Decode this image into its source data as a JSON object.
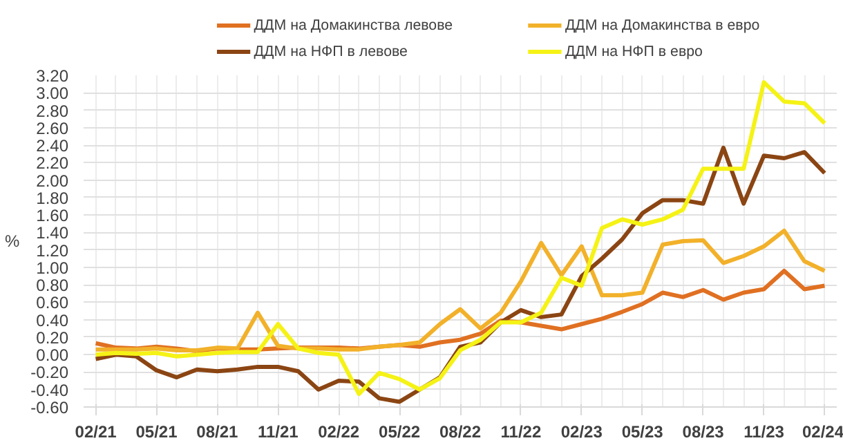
{
  "chart_data": {
    "type": "line",
    "ylabel": "%",
    "categories": [
      "02/21",
      null,
      null,
      "05/21",
      null,
      null,
      "08/21",
      null,
      null,
      "11/21",
      null,
      null,
      "02/22",
      null,
      null,
      "05/22",
      null,
      null,
      "08/22",
      null,
      null,
      "11/22",
      null,
      null,
      "02/23",
      null,
      null,
      "05/23",
      null,
      null,
      "08/23",
      null,
      null,
      "11/23",
      null,
      null,
      "02/24"
    ],
    "series": [
      {
        "name": "ДДМ на Домакинства левове",
        "color": "#e07022",
        "values": [
          0.13,
          0.08,
          0.07,
          0.09,
          0.07,
          0.04,
          0.07,
          0.06,
          0.06,
          0.07,
          0.08,
          0.08,
          0.08,
          0.07,
          0.09,
          0.11,
          0.09,
          0.14,
          0.17,
          0.24,
          0.39,
          0.37,
          0.33,
          0.29,
          0.35,
          0.41,
          0.49,
          0.58,
          0.71,
          0.66,
          0.74,
          0.63,
          0.71,
          0.75,
          0.96,
          0.75,
          0.79
        ]
      },
      {
        "name": "ДДМ на Домакинства в евро",
        "color": "#f2b12a",
        "values": [
          0.06,
          0.06,
          0.06,
          0.07,
          0.05,
          0.05,
          0.08,
          0.07,
          0.48,
          0.1,
          0.07,
          0.07,
          0.06,
          0.06,
          0.09,
          0.11,
          0.14,
          0.35,
          0.52,
          0.3,
          0.48,
          0.84,
          1.28,
          0.91,
          1.24,
          0.68,
          0.68,
          0.71,
          1.26,
          1.3,
          1.31,
          1.05,
          1.13,
          1.24,
          1.42,
          1.07,
          0.96
        ]
      },
      {
        "name": "ДДМ на НФП  в левове",
        "color": "#8b4513",
        "values": [
          -0.05,
          0.0,
          -0.02,
          -0.18,
          -0.26,
          -0.17,
          -0.19,
          -0.17,
          -0.14,
          -0.14,
          -0.19,
          -0.4,
          -0.3,
          -0.31,
          -0.5,
          -0.54,
          -0.4,
          -0.26,
          0.09,
          0.14,
          0.37,
          0.51,
          0.43,
          0.46,
          0.9,
          1.1,
          1.32,
          1.62,
          1.77,
          1.77,
          1.73,
          2.37,
          1.73,
          2.28,
          2.25,
          2.32,
          2.08
        ]
      },
      {
        "name": "ДДМ на НФП  в евро",
        "color": "#f5f216",
        "values": [
          0.0,
          0.02,
          0.01,
          0.02,
          -0.02,
          0.0,
          0.02,
          0.03,
          0.03,
          0.35,
          0.07,
          0.02,
          0.0,
          -0.45,
          -0.21,
          -0.28,
          -0.4,
          -0.27,
          0.05,
          0.17,
          0.37,
          0.37,
          0.48,
          0.88,
          0.79,
          1.45,
          1.55,
          1.49,
          1.55,
          1.66,
          2.13,
          2.13,
          2.13,
          3.12,
          2.9,
          2.88,
          2.65
        ]
      }
    ],
    "ylim": [
      -0.6,
      3.2
    ],
    "yticks": [
      {
        "value": -0.6,
        "label": "-0.60"
      },
      {
        "value": -0.4,
        "label": "-0.40"
      },
      {
        "value": -0.2,
        "label": "-0.20"
      },
      {
        "value": 0,
        "label": "0.00"
      },
      {
        "value": 0.2,
        "label": "0.20"
      },
      {
        "value": 0.4,
        "label": "0.40"
      },
      {
        "value": 0.6,
        "label": "0.60"
      },
      {
        "value": 0.8,
        "label": "0.80"
      },
      {
        "value": 1.0,
        "label": "1.00"
      },
      {
        "value": 1.2,
        "label": "1.20"
      },
      {
        "value": 1.4,
        "label": "1.40"
      },
      {
        "value": 1.6,
        "label": "1.60"
      },
      {
        "value": 1.8,
        "label": "1.80"
      },
      {
        "value": 2.0,
        "label": "2.00"
      },
      {
        "value": 2.2,
        "label": "2.20"
      },
      {
        "value": 2.4,
        "label": "2.40"
      },
      {
        "value": 2.6,
        "label": "2.60"
      },
      {
        "value": 2.8,
        "label": "2.80"
      },
      {
        "value": 3.0,
        "label": "3.00"
      },
      {
        "value": 3.2,
        "label": "3.20"
      }
    ],
    "grid": true,
    "legend": "top",
    "marker": "none",
    "line_style": "solid"
  }
}
